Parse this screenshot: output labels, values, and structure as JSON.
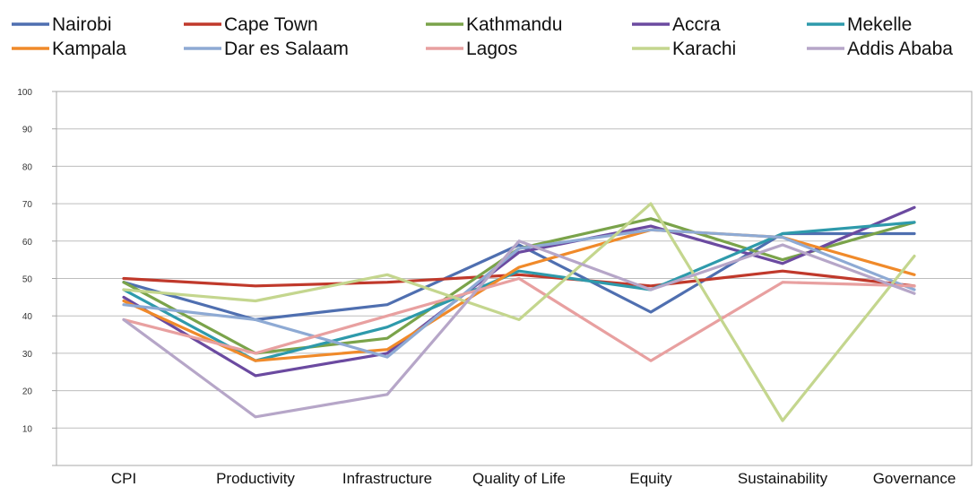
{
  "chart_data": {
    "type": "line",
    "title": "",
    "xlabel": "",
    "ylabel": "",
    "categories": [
      "CPI",
      "Productivity",
      "Infrastructure",
      "Quality of Life",
      "Equity",
      "Sustainability",
      "Governance"
    ],
    "ylim": [
      0,
      100
    ],
    "yticks": [
      0,
      10,
      20,
      30,
      40,
      50,
      60,
      70,
      80,
      90,
      100
    ],
    "ytick_labels": [
      "",
      "10",
      "20",
      "30",
      "40",
      "50",
      "60",
      "70",
      "80",
      "90",
      "100"
    ],
    "grid": true,
    "legend_position": "top",
    "series": [
      {
        "name": "Nairobi",
        "color": "#4f6fb0",
        "values": [
          49,
          39,
          43,
          59,
          41,
          62,
          62
        ]
      },
      {
        "name": "Cape Town",
        "color": "#c0392b",
        "values": [
          50,
          48,
          49,
          51,
          48,
          52,
          48
        ]
      },
      {
        "name": "Kathmandu",
        "color": "#7aa34a",
        "values": [
          49,
          30,
          34,
          58,
          66,
          55,
          65
        ]
      },
      {
        "name": "Accra",
        "color": "#6b4aa0",
        "values": [
          45,
          24,
          30,
          57,
          64,
          54,
          69
        ]
      },
      {
        "name": "Mekelle",
        "color": "#2e9aab",
        "values": [
          47,
          28,
          37,
          52,
          47,
          62,
          65
        ]
      },
      {
        "name": "Kampala",
        "color": "#f08a2a",
        "values": [
          44,
          28,
          31,
          53,
          63,
          61,
          51
        ]
      },
      {
        "name": "Dar es Salaam",
        "color": "#8eaad4",
        "values": [
          43,
          39,
          29,
          58,
          63,
          61,
          47
        ]
      },
      {
        "name": "Lagos",
        "color": "#e8a0a0",
        "values": [
          39,
          30,
          40,
          50,
          28,
          49,
          48
        ]
      },
      {
        "name": "Karachi",
        "color": "#c4d68e",
        "values": [
          47,
          44,
          51,
          39,
          70,
          12,
          56
        ]
      },
      {
        "name": "Addis Ababa",
        "color": "#b6a6c8",
        "values": [
          39,
          13,
          19,
          60,
          47,
          59,
          46
        ]
      }
    ]
  }
}
